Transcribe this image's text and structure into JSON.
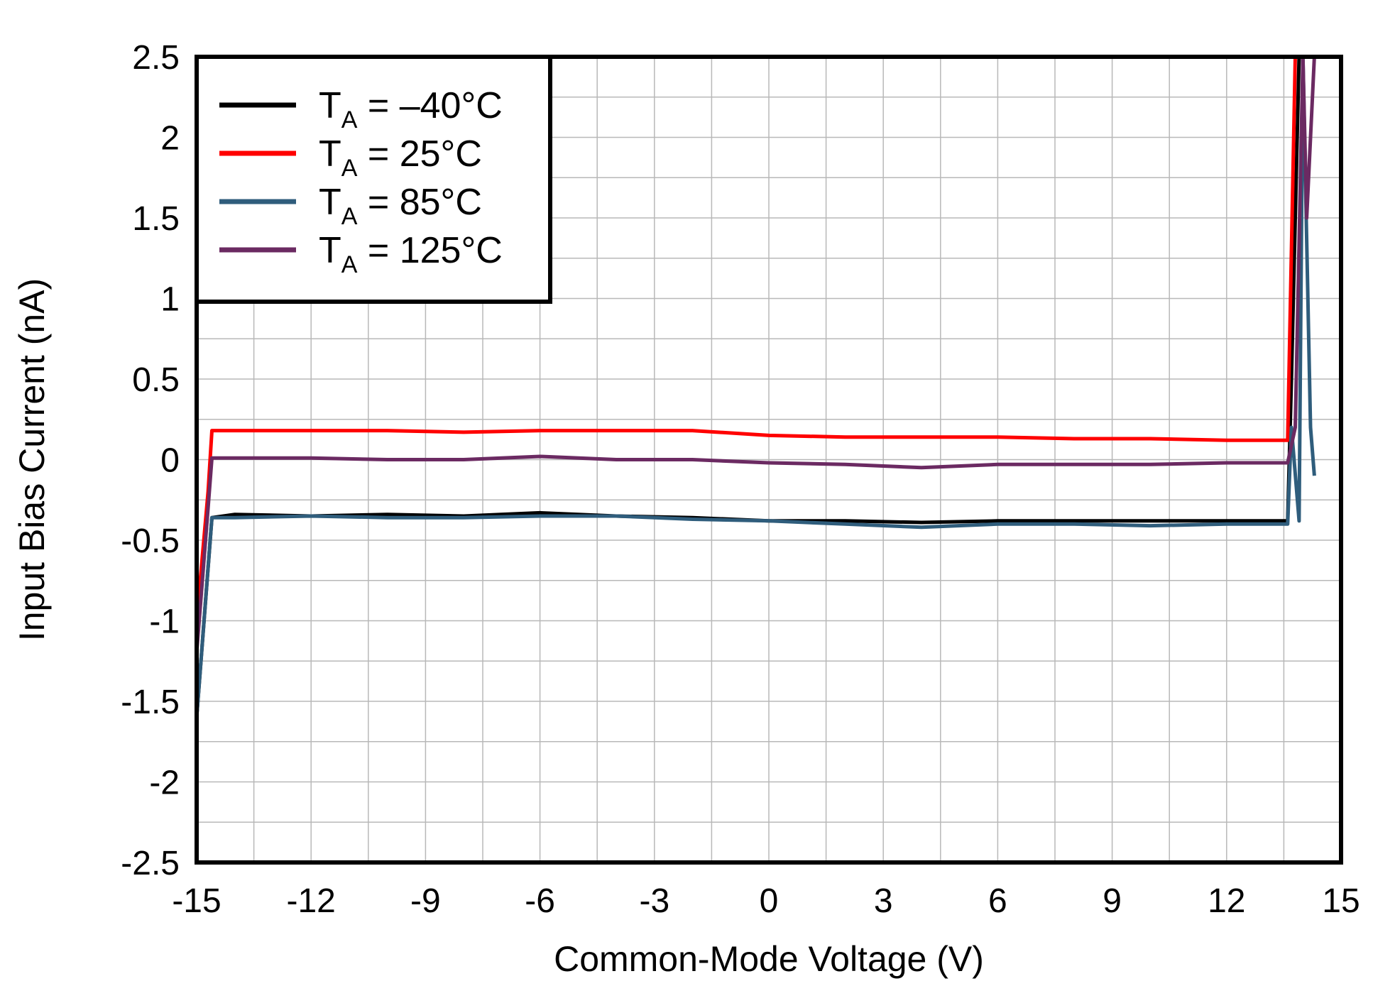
{
  "chart_data": {
    "type": "line",
    "title": "",
    "xlabel": "Common-Mode Voltage (V)",
    "ylabel": "Input Bias Current (nA)",
    "xlim": [
      -15,
      15
    ],
    "ylim": [
      -2.5,
      2.5
    ],
    "x_ticks": [
      "-15",
      "-12",
      "-9",
      "-6",
      "-3",
      "0",
      "3",
      "6",
      "9",
      "12",
      "15"
    ],
    "y_ticks": [
      "2.5",
      "2",
      "1.5",
      "1",
      "0.5",
      "0",
      "-0.5",
      "-1",
      "-1.5",
      "-2",
      "-2.5"
    ],
    "grid": true,
    "legend_position": "top-left",
    "series": [
      {
        "name": "T",
        "name_sub": "A",
        "name_rest": " = –40°C",
        "color": "#000000",
        "x": [
          -15,
          -14.6,
          -14,
          -12,
          -10,
          -8,
          -6,
          -4,
          -2,
          0,
          2,
          4,
          6,
          8,
          10,
          12,
          13.6,
          13.7,
          13.9,
          14.1
        ],
        "y": [
          -1.6,
          -0.36,
          -0.34,
          -0.35,
          -0.34,
          -0.35,
          -0.33,
          -0.35,
          -0.36,
          -0.38,
          -0.38,
          -0.39,
          -0.38,
          -0.38,
          -0.38,
          -0.38,
          -0.38,
          0.5,
          2.5,
          2.5
        ]
      },
      {
        "name": "T",
        "name_sub": "A",
        "name_rest": " = 25°C",
        "color": "#ff0000",
        "x": [
          -15,
          -14.7,
          -14.6,
          -14,
          -12,
          -10,
          -8,
          -6,
          -4,
          -2,
          0,
          2,
          4,
          6,
          8,
          10,
          12,
          13.5,
          13.6,
          13.8,
          14.0
        ],
        "y": [
          -1.0,
          -0.2,
          0.18,
          0.18,
          0.18,
          0.18,
          0.17,
          0.18,
          0.18,
          0.18,
          0.15,
          0.14,
          0.14,
          0.14,
          0.13,
          0.13,
          0.12,
          0.12,
          0.12,
          2.5,
          2.5
        ]
      },
      {
        "name": "T",
        "name_sub": "A",
        "name_rest": " = 85°C",
        "color": "#2f5d7c",
        "x": [
          -15,
          -14.6,
          -14,
          -12,
          -10,
          -8,
          -6,
          -4,
          -2,
          0,
          2,
          4,
          6,
          8,
          10,
          12,
          13.6,
          13.7,
          13.9,
          14.0,
          14.2,
          14.3
        ],
        "y": [
          -1.6,
          -0.36,
          -0.36,
          -0.35,
          -0.36,
          -0.36,
          -0.35,
          -0.35,
          -0.37,
          -0.38,
          -0.4,
          -0.42,
          -0.4,
          -0.4,
          -0.41,
          -0.4,
          -0.4,
          0.2,
          -0.38,
          2.5,
          0.2,
          -0.1
        ]
      },
      {
        "name": "T",
        "name_sub": "A",
        "name_rest": " = 125°C",
        "color": "#6b2a62",
        "x": [
          -15,
          -14.7,
          -14.6,
          -14,
          -12,
          -10,
          -8,
          -6,
          -4,
          -2,
          0,
          2,
          4,
          6,
          8,
          10,
          12,
          13.6,
          13.8,
          14.0,
          14.1,
          14.3
        ],
        "y": [
          -1.2,
          -0.3,
          0.01,
          0.01,
          0.01,
          0.0,
          0.0,
          0.02,
          0.0,
          0.0,
          -0.02,
          -0.03,
          -0.05,
          -0.03,
          -0.03,
          -0.03,
          -0.02,
          -0.02,
          0.2,
          2.5,
          1.5,
          2.5
        ]
      }
    ]
  }
}
